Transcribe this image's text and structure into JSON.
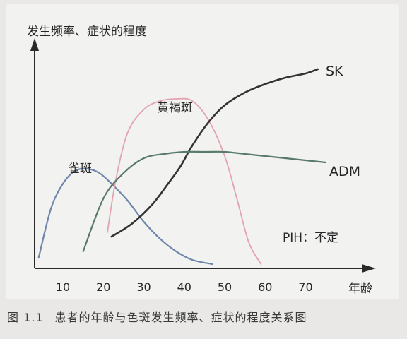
{
  "caption": {
    "figure_number": "图 1.1",
    "text": "患者的年龄与色斑发生频率、症状的程度关系图"
  },
  "chart_data": {
    "type": "line",
    "title": "",
    "ylabel": "发生频率、症状的程度",
    "xlabel": "年龄",
    "xlim": [
      3,
      79
    ],
    "ylim": [
      0,
      100
    ],
    "x_ticks": [
      10,
      20,
      30,
      40,
      50,
      60,
      70
    ],
    "grid": false,
    "series": [
      {
        "name": "雀斑",
        "color": "#6f86ab",
        "points": [
          [
            4,
            5
          ],
          [
            7,
            28
          ],
          [
            10,
            40
          ],
          [
            13,
            46
          ],
          [
            16,
            47
          ],
          [
            19,
            45
          ],
          [
            22,
            40
          ],
          [
            26,
            32
          ],
          [
            30,
            22
          ],
          [
            34,
            14
          ],
          [
            38,
            8
          ],
          [
            42,
            4
          ],
          [
            47,
            2
          ]
        ]
      },
      {
        "name": "黄褐斑",
        "color": "#e3a3b0",
        "points": [
          [
            21,
            17
          ],
          [
            23,
            41
          ],
          [
            26,
            64
          ],
          [
            30,
            75
          ],
          [
            34,
            79
          ],
          [
            38,
            80
          ],
          [
            42,
            79
          ],
          [
            46,
            70
          ],
          [
            50,
            53
          ],
          [
            53,
            33
          ],
          [
            56,
            12
          ],
          [
            59,
            2
          ]
        ]
      },
      {
        "name": "SK",
        "color": "#333333",
        "points": [
          [
            22,
            15
          ],
          [
            27,
            21
          ],
          [
            32,
            30
          ],
          [
            36,
            40
          ],
          [
            39,
            48
          ],
          [
            42,
            58
          ],
          [
            46,
            69
          ],
          [
            50,
            77
          ],
          [
            55,
            83
          ],
          [
            60,
            87
          ],
          [
            65,
            90
          ],
          [
            70,
            92
          ],
          [
            73,
            94
          ]
        ]
      },
      {
        "name": "ADM",
        "color": "#587a68",
        "points": [
          [
            15,
            8
          ],
          [
            20,
            33
          ],
          [
            25,
            45
          ],
          [
            30,
            52
          ],
          [
            35,
            54
          ],
          [
            40,
            55
          ],
          [
            45,
            55
          ],
          [
            50,
            55
          ],
          [
            55,
            54
          ],
          [
            60,
            53
          ],
          [
            65,
            52
          ],
          [
            70,
            51
          ],
          [
            75,
            50
          ]
        ]
      }
    ],
    "annotations": [
      {
        "text": "PIH：不定"
      }
    ]
  }
}
